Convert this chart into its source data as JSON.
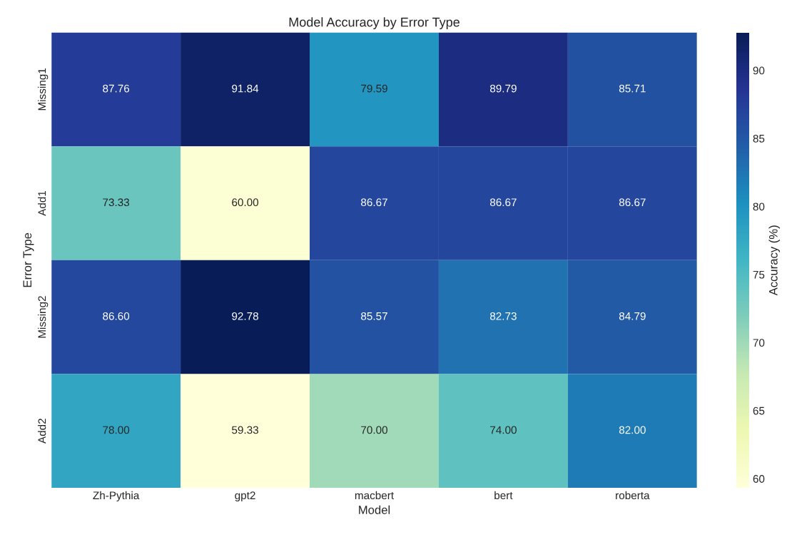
{
  "chart_data": {
    "type": "heatmap",
    "title": "Model Accuracy by Error Type",
    "xlabel": "Model",
    "ylabel": "Error Type",
    "clabel": "Accuracy (%)",
    "categories": [
      "Zh-Pythia",
      "gpt2",
      "macbert",
      "bert",
      "roberta"
    ],
    "y_categories": [
      "Missing1",
      "Add1",
      "Missing2",
      "Add2"
    ],
    "cells": [
      [
        87.76,
        91.84,
        79.59,
        89.79,
        85.71
      ],
      [
        73.33,
        60.0,
        86.67,
        86.67,
        86.67
      ],
      [
        86.6,
        92.78,
        85.57,
        82.73,
        84.79
      ],
      [
        78.0,
        59.33,
        70.0,
        74.0,
        82.0
      ]
    ],
    "cell_labels": [
      [
        "87.76",
        "91.84",
        "79.59",
        "89.79",
        "85.71"
      ],
      [
        "73.33",
        "60.00",
        "86.67",
        "86.67",
        "86.67"
      ],
      [
        "86.60",
        "92.78",
        "85.57",
        "82.73",
        "84.79"
      ],
      [
        "78.00",
        "59.33",
        "70.00",
        "74.00",
        "82.00"
      ]
    ],
    "clim": [
      59.33,
      92.78
    ],
    "cticks": [
      60,
      65,
      70,
      75,
      80,
      85,
      90
    ],
    "data_labels": true
  }
}
